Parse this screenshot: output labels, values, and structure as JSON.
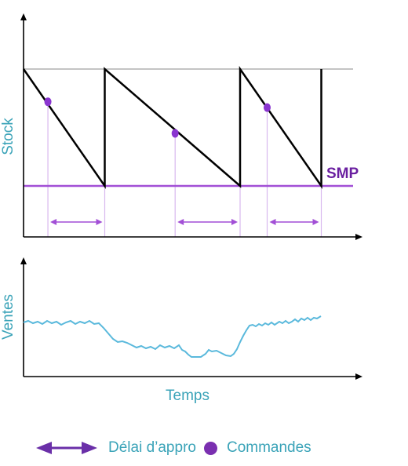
{
  "stock_panel": {
    "ylabel": "Stock",
    "smp_label": "SMP",
    "max_level": 100,
    "smp_level": 0,
    "cycles": [
      {
        "start": 0.0,
        "end": 3.0,
        "order_at": 0.9,
        "order_level": 72,
        "receipt_at": 3.0
      },
      {
        "start": 3.0,
        "end": 8.0,
        "order_at": 5.6,
        "order_level": 45,
        "receipt_at": 8.0
      },
      {
        "start": 8.0,
        "end": 11.0,
        "order_at": 9.0,
        "order_level": 67,
        "receipt_at": 11.0
      }
    ]
  },
  "sales_panel": {
    "ylabel": "Ventes",
    "xlabel": "Temps"
  },
  "legend": {
    "lead_time": "Délai d’appro",
    "orders": "Commandes"
  },
  "colors": {
    "stock_line": "#000000",
    "smp_line": "#a24fd6",
    "order_dot": "#8a35d0",
    "arrow": "#a24fd6",
    "sales_line": "#5ab9dc",
    "teal_text": "#3aa3b8",
    "axis": "#000000",
    "max_line": "#b0b0b0"
  }
}
